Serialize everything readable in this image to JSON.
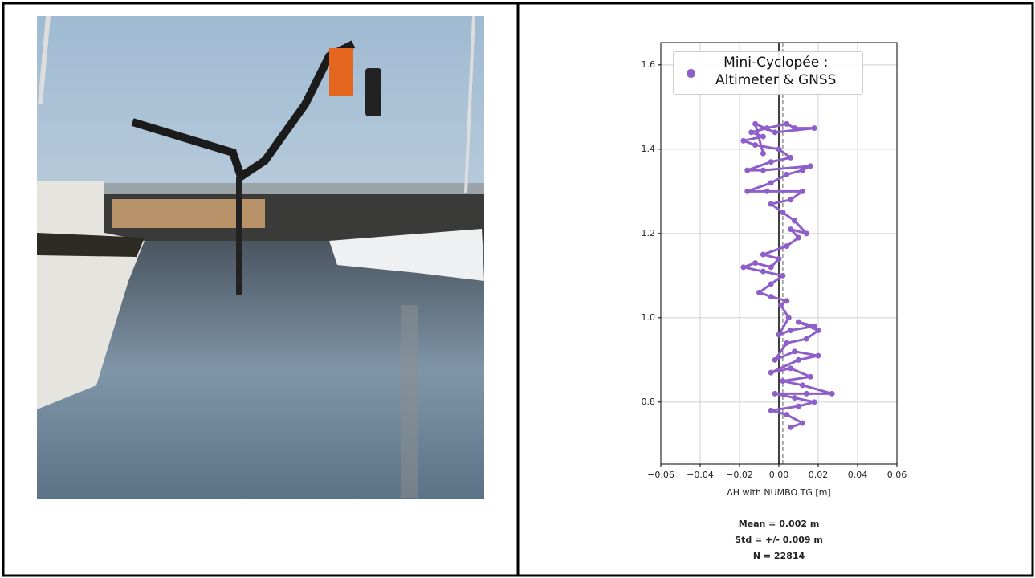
{
  "chart_data": {
    "type": "scatter",
    "x_label": "ΔH with NUMBO TG [m]",
    "x": [
      0.006,
      0.012,
      0.004,
      -0.004,
      0.01,
      0.018,
      0.008,
      -0.002,
      0.014,
      0.027,
      0.012,
      0.002,
      0.016,
      0.006,
      -0.004,
      0.01,
      0.02,
      0.008,
      -0.002,
      0.004,
      0.014,
      0.02,
      0.01,
      0.018,
      0.006,
      0.0,
      0.005,
      0.001,
      0.004,
      -0.004,
      -0.01,
      -0.004,
      0.002,
      -0.008,
      -0.018,
      -0.012,
      -0.004,
      0.0,
      -0.008,
      0.004,
      0.01,
      0.006,
      0.014,
      0.008,
      0.002,
      -0.004,
      0.006,
      0.012,
      -0.006,
      -0.016,
      -0.004,
      0.004,
      0.012,
      0.016,
      -0.008,
      -0.016,
      -0.004,
      0.006,
      0.0,
      -0.012,
      -0.018,
      -0.008,
      -0.014,
      -0.006,
      0.004,
      0.008,
      0.018,
      -0.002,
      -0.012,
      -0.008
    ],
    "series": [
      {
        "name": "Mini-Cyclopée :\nAltimeter & GNSS",
        "color": "#8e5fc9",
        "values": [
          0.74,
          0.75,
          0.77,
          0.78,
          0.79,
          0.8,
          0.81,
          0.82,
          0.82,
          0.82,
          0.84,
          0.85,
          0.86,
          0.88,
          0.87,
          0.9,
          0.91,
          0.92,
          0.9,
          0.94,
          0.95,
          0.97,
          0.99,
          0.98,
          0.97,
          0.96,
          1.0,
          1.03,
          1.04,
          1.05,
          1.06,
          1.08,
          1.1,
          1.11,
          1.12,
          1.13,
          1.12,
          1.14,
          1.15,
          1.17,
          1.19,
          1.21,
          1.2,
          1.23,
          1.25,
          1.27,
          1.28,
          1.3,
          1.3,
          1.3,
          1.32,
          1.34,
          1.35,
          1.36,
          1.35,
          1.35,
          1.37,
          1.38,
          1.4,
          1.41,
          1.42,
          1.43,
          1.44,
          1.45,
          1.46,
          1.45,
          1.45,
          1.44,
          1.46,
          1.39
        ]
      }
    ],
    "xlim": [
      -0.06,
      0.06
    ],
    "xticks": [
      {
        "value": -0.06,
        "label": "−0.06"
      },
      {
        "value": -0.04,
        "label": "−0.04"
      },
      {
        "value": -0.02,
        "label": "−0.02"
      },
      {
        "value": 0,
        "label": "0.00"
      },
      0.02,
      0.04,
      0.06
    ],
    "ylim": [
      0.653,
      1.653
    ],
    "yticks": [
      0.8,
      {
        "value": 1.0,
        "label": "1.0"
      },
      1.2,
      1.4,
      1.6
    ],
    "grid": true,
    "legend": "upper left",
    "vlines": [
      {
        "x": 0,
        "color": "#000000",
        "style": "solid"
      },
      {
        "x": 0.002,
        "color": "#777777",
        "style": "dashed"
      }
    ],
    "annotations": [
      "Mean = 0.002 m",
      "Std = +/- 0.009 m",
      "N = 22814"
    ]
  }
}
